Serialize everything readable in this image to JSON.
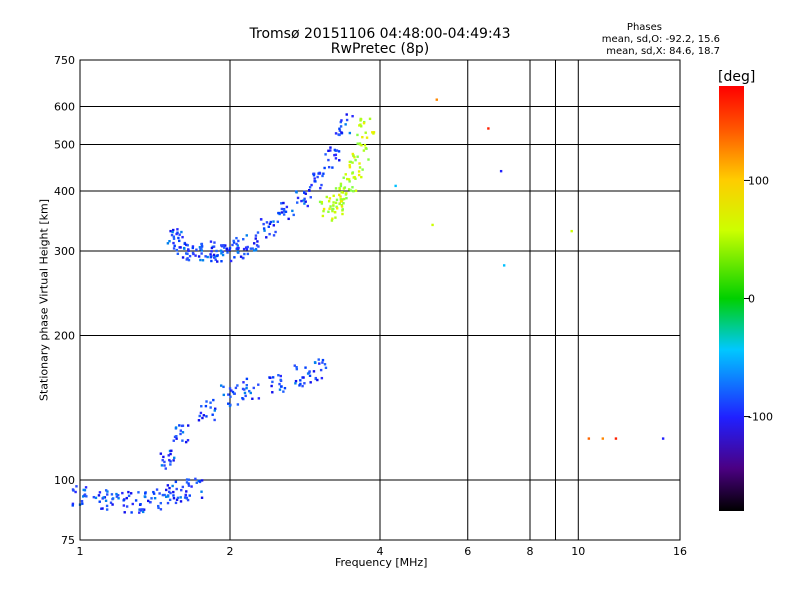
{
  "header": {
    "title_line1": "Tromsø 20151106 04:48:00-04:49:43",
    "title_line2": "RwPretec (8p)",
    "phase_title": "Phases",
    "phase_o": "mean, sd,O: -92.2, 15.6",
    "phase_x": "mean, sd,X:  84.6, 18.7"
  },
  "colorbar": {
    "unit": "[deg]",
    "ticks": [
      {
        "value": 100,
        "label": "100"
      },
      {
        "value": 0,
        "label": "0"
      },
      {
        "value": -100,
        "label": "-100"
      }
    ],
    "min": -180,
    "max": 180
  },
  "chart_data": {
    "type": "scatter",
    "title": "Tromsø 20151106 04:48:00-04:49:43",
    "subtitle": "RwPretec (8p)",
    "xlabel": "Frequency [MHz]",
    "ylabel": "Stationary phase Virtual Height [km]",
    "x_scale": "log",
    "y_scale": "log",
    "xlim": [
      1,
      16
    ],
    "ylim": [
      75,
      750
    ],
    "x_major_ticks": [
      1,
      2,
      4,
      8,
      16
    ],
    "x_minor_ticks": [
      6,
      10
    ],
    "x_gridlines": [
      2,
      4,
      6,
      8,
      9,
      10
    ],
    "y_ticks": [
      75,
      100,
      200,
      300,
      400,
      500,
      600,
      750
    ],
    "y_gridlines": [
      100,
      200,
      300,
      400,
      500,
      600
    ],
    "grid": true,
    "color_encoding": "phase (deg), rainbow colormap from -180 (black) to 180 (red)",
    "series": [
      {
        "description": "O-mode F-layer trace",
        "mean_phase": -92.2,
        "x": [
          1.55,
          1.6,
          1.7,
          1.8,
          1.9,
          2.0,
          2.1,
          2.2,
          2.4,
          2.6,
          2.8,
          3.0,
          3.2,
          3.4
        ],
        "y": [
          320,
          305,
          300,
          300,
          300,
          300,
          305,
          315,
          335,
          360,
          385,
          420,
          470,
          550
        ]
      },
      {
        "description": "X-mode F-layer trace",
        "mean_phase": 84.6,
        "x": [
          3.15,
          3.25,
          3.35,
          3.45,
          3.55,
          3.65,
          3.75
        ],
        "y": [
          365,
          375,
          390,
          410,
          440,
          480,
          540
        ]
      },
      {
        "description": "E/F1 region echoes",
        "x": [
          1.5,
          1.6,
          1.8,
          2.0,
          2.2,
          2.5,
          2.8,
          3.0
        ],
        "y": [
          110,
          125,
          140,
          150,
          155,
          160,
          165,
          170
        ]
      },
      {
        "description": "Low-altitude trace",
        "x": [
          1.0,
          1.1,
          1.2,
          1.3,
          1.4,
          1.5,
          1.6,
          1.7
        ],
        "y": [
          93,
          91,
          90,
          90,
          91,
          93,
          95,
          96
        ]
      },
      {
        "description": "Scattered points",
        "x": [
          5.2,
          6.6,
          7.0,
          7.1,
          9.7,
          10.5,
          11.2,
          11.9,
          14.8,
          4.3,
          5.1
        ],
        "y": [
          620,
          540,
          440,
          280,
          330,
          122,
          122,
          122,
          122,
          410,
          340
        ]
      }
    ]
  }
}
